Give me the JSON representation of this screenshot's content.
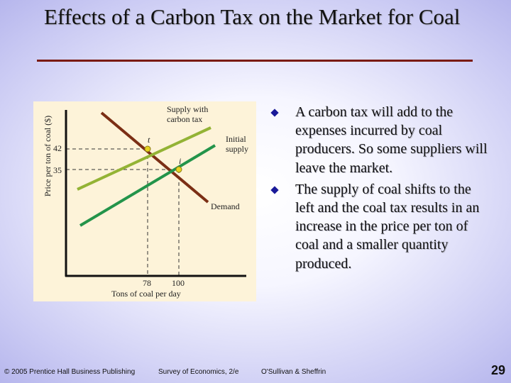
{
  "title": "Effects of a Carbon Tax on the Market for Coal",
  "graph": {
    "y_axis_label": "Price per ton of coal ($)",
    "x_axis_label": "Tons of coal per day",
    "y_ticks": [
      "42",
      "35"
    ],
    "x_ticks": [
      "78",
      "100"
    ],
    "curve_labels": {
      "supply_tax_line1": "Supply with",
      "supply_tax_line2": "carbon tax",
      "initial_line1": "Initial",
      "initial_line2": "supply",
      "demand": "Demand"
    },
    "point_labels": {
      "t": "t",
      "i": "i"
    },
    "colors": {
      "demand": "#7b2e14",
      "supply_with_tax": "#93b335",
      "initial_supply": "#23944a",
      "point": "#e6d21e"
    }
  },
  "bullets": [
    "A carbon tax will add to the expenses incurred by coal producers. So some suppliers will leave the market.",
    "The supply of coal shifts to the left and the coal tax results in an increase in the price per ton of coal and a smaller quantity produced."
  ],
  "footer": {
    "publisher": "© 2005 Prentice Hall Business Publishing",
    "book": "Survey of Economics, 2/e",
    "authors": "O'Sullivan & Sheffrin",
    "page": "29"
  }
}
